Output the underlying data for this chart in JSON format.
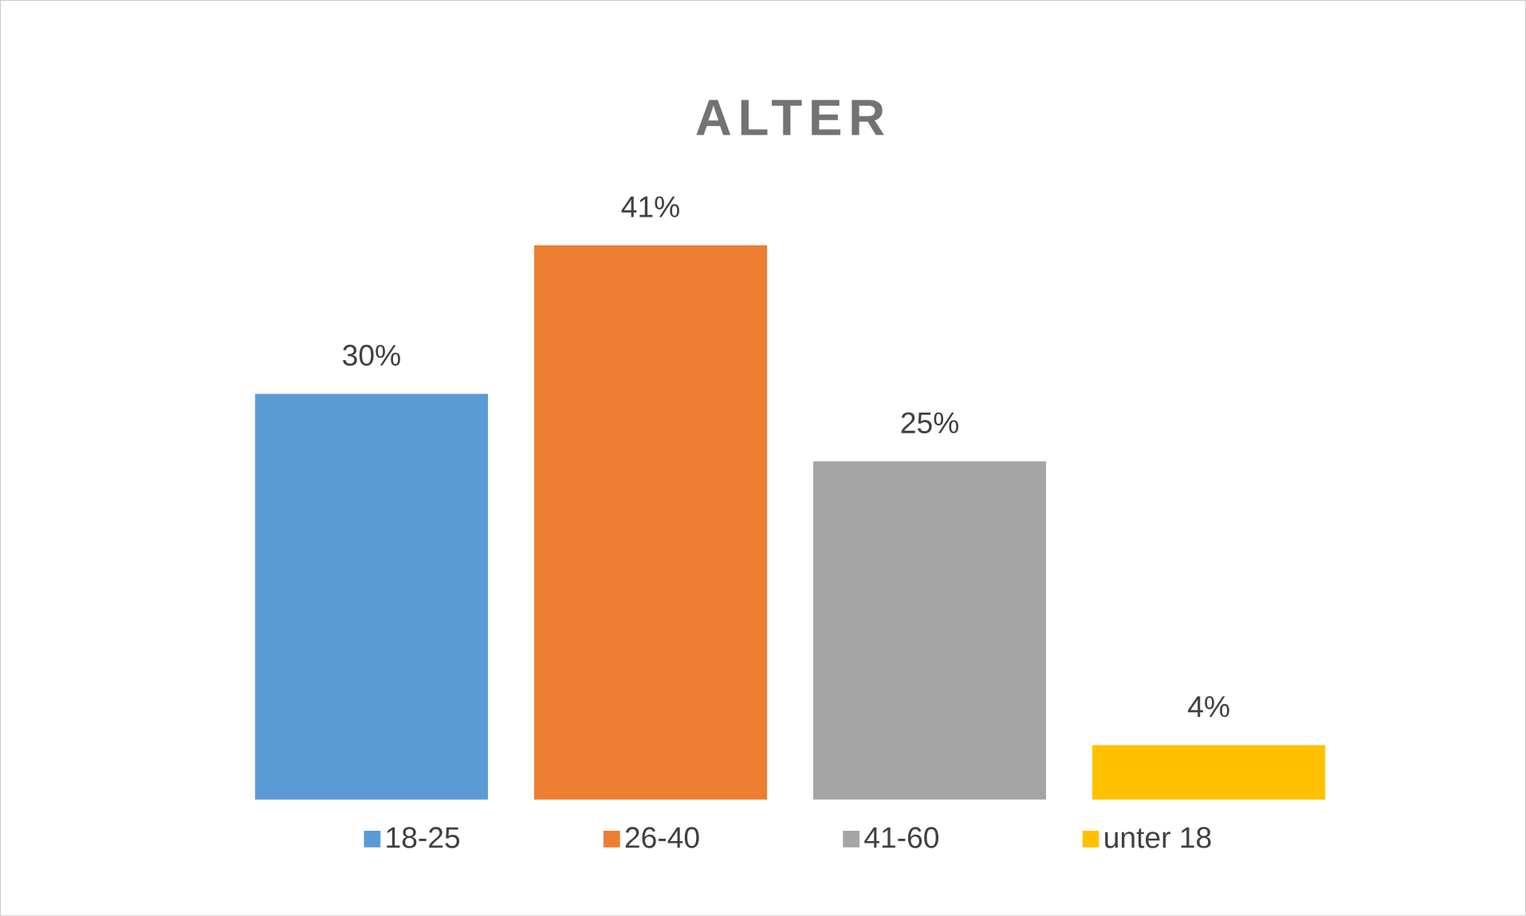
{
  "chart_data": {
    "type": "bar",
    "title": "ALTER",
    "categories": [
      null
    ],
    "series": [
      {
        "name": "18-25",
        "color": "#5b9bd5",
        "values": [
          30
        ],
        "value_labels": [
          "30%"
        ]
      },
      {
        "name": "26-40",
        "color": "#ed7d31",
        "values": [
          41
        ],
        "value_labels": [
          "41%"
        ]
      },
      {
        "name": "41-60",
        "color": "#a5a5a5",
        "values": [
          25
        ],
        "value_labels": [
          "25%"
        ]
      },
      {
        "name": "unter 18",
        "color": "#ffc000",
        "values": [
          4
        ],
        "value_labels": [
          "4%"
        ]
      }
    ],
    "legend": "bottom"
  }
}
